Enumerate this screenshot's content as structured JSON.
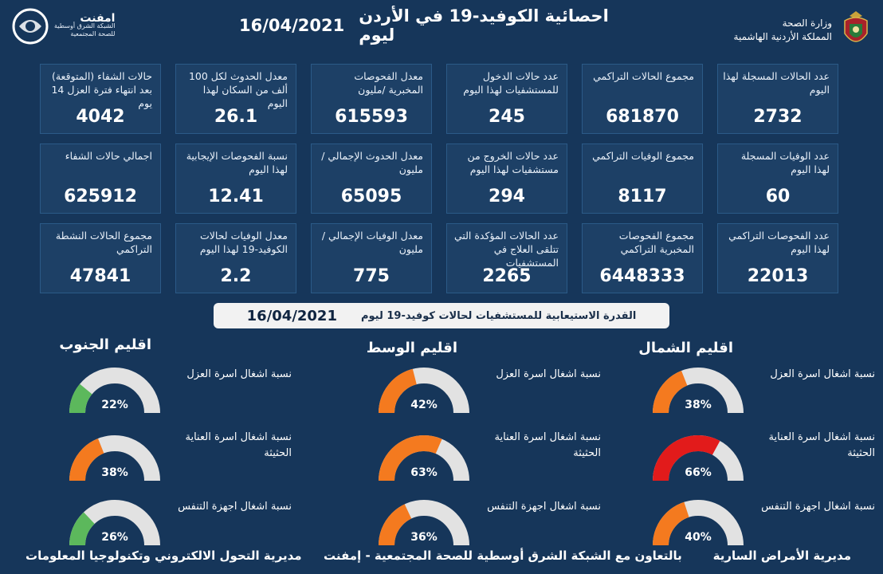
{
  "header": {
    "title": "احصائية الكوفيد-19 في الأردن ليوم",
    "date": "16/04/2021",
    "ministry_line1": "وزارة الصحة",
    "ministry_line2": "المملكة الأردنية الهاشمية",
    "imf_name": "امفنت",
    "imf_line1": "الشبكة الشرق أوسطية",
    "imf_line2": "للصحة المجتمعية"
  },
  "stats": [
    {
      "label": "عدد الحالات المسجلة لهذا اليوم",
      "value": "2732"
    },
    {
      "label": "مجموع الحالات التراكمي",
      "value": "681870"
    },
    {
      "label": "عدد حالات الدخول للمستشفيات لهذا اليوم",
      "value": "245"
    },
    {
      "label": "معدل الفحوصات المخبرية /مليون",
      "value": "615593"
    },
    {
      "label": "معدل الحدوث لكل 100 ألف من السكان لهذا اليوم",
      "value": "26.1"
    },
    {
      "label": "حالات الشفاء (المتوقعة) بعد انتهاء فترة العزل 14 يوم",
      "value": "4042"
    },
    {
      "label": "عدد الوفيات المسجلة لهذا اليوم",
      "value": "60"
    },
    {
      "label": "مجموع الوفيات التراكمي",
      "value": "8117"
    },
    {
      "label": "عدد حالات الخروج من مستشفيات لهذا اليوم",
      "value": "294"
    },
    {
      "label": "معدل الحدوث الإجمالي /مليون",
      "value": "65095"
    },
    {
      "label": "نسبة الفحوصات الإيجابية لهذا اليوم",
      "value": "12.41"
    },
    {
      "label": "اجمالي حالات الشفاء",
      "value": "625912"
    },
    {
      "label": "عدد الفحوصات التراكمي لهذا اليوم",
      "value": "22013"
    },
    {
      "label": "مجموع الفحوصات المخبرية التراكمي",
      "value": "6448333"
    },
    {
      "label": "عدد الحالات المؤكدة التي تتلقى العلاج في المستشفيات",
      "value": "2265"
    },
    {
      "label": "معدل الوفيات الإجمالي /مليون",
      "value": "775"
    },
    {
      "label": "معدل الوفيات لحالات الكوفيد-19 لهذا اليوم",
      "value": "2.2"
    },
    {
      "label": "مجموع الحالات النشطة التراكمي",
      "value": "47841"
    }
  ],
  "banner": {
    "text": "القدرة الاستيعابية للمستشفيات لحالات كوفيد-19 ليوم",
    "date": "16/04/2021"
  },
  "gauge_labels": {
    "isolation": "نسبة اشغال اسرة العزل",
    "icu": "نسبة اشغال اسرة العناية الحثيثة",
    "ventilators": "نسبة اشغال اجهزة التنفس"
  },
  "regions": [
    {
      "name": "اقليم الشمال",
      "isolation": 38,
      "icu": 66,
      "ventilators": 40
    },
    {
      "name": "اقليم الوسط",
      "isolation": 42,
      "icu": 63,
      "ventilators": 36
    },
    {
      "name": "اقليم الجنوب",
      "isolation": 22,
      "icu": 38,
      "ventilators": 26
    }
  ],
  "footer": {
    "right": "مديرية الأمراض السارية",
    "center": "بالتعاون مع الشبكة الشرق أوسطية للصحة المجتمعية - إمفنت",
    "left": "مديرية التحول الالكتروني وتكنولوجيا المعلومات"
  },
  "colors": {
    "background": "#16365a",
    "card": "#1d4066",
    "gauge_track": "#e2e2e2",
    "gauge_orange": "#f47a1f",
    "gauge_green": "#5cb85c",
    "gauge_red": "#e21b1b"
  }
}
